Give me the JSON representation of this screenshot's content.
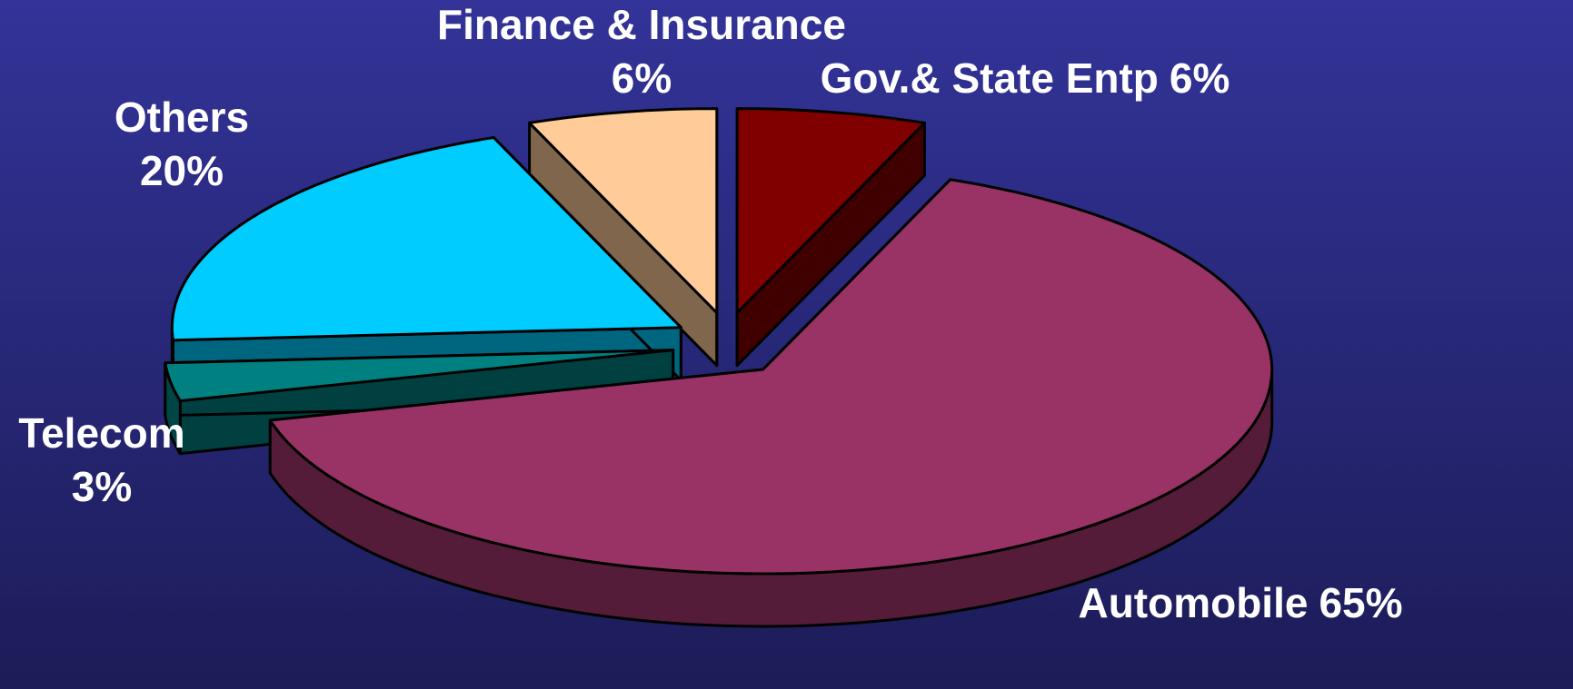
{
  "chart_data": {
    "type": "pie3d",
    "categories": [
      "Gov.& State Entp",
      "Automobile",
      "Telecom",
      "Others",
      "Finance & Insurance"
    ],
    "values": [
      6,
      65,
      3,
      20,
      6
    ],
    "value_labels": [
      "6%",
      "65%",
      "3%",
      "20%",
      "6%"
    ],
    "colors": [
      "#800000",
      "#993366",
      "#008080",
      "#00ccff",
      "#ffcc99"
    ]
  }
}
